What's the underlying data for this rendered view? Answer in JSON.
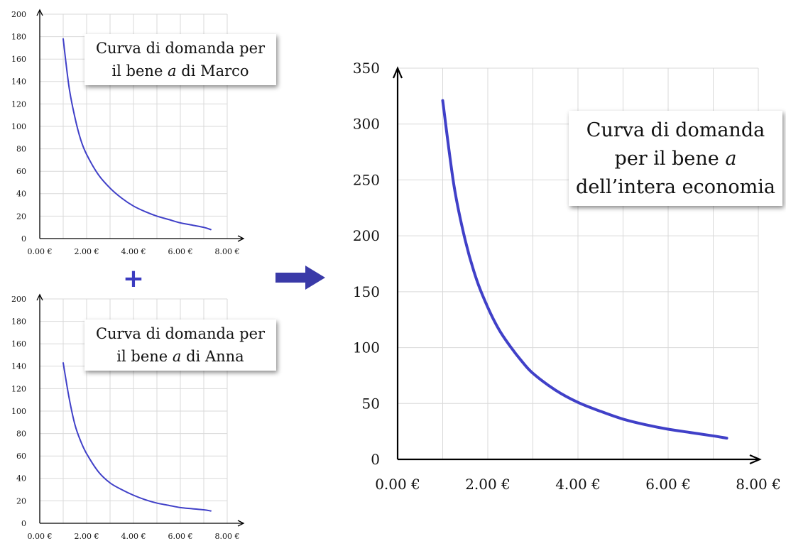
{
  "colors": {
    "curve": "#4040c8",
    "arrow": "#3a3aa8",
    "grid": "#d9d9d9",
    "axis": "#000000"
  },
  "plus_symbol": "+",
  "chart_data": [
    {
      "type": "line",
      "legend_lines": [
        "Curva di domanda per",
        "il bene ",
        "a",
        " di Marco"
      ],
      "xlim": [
        0,
        8
      ],
      "ylim": [
        0,
        200
      ],
      "x_ticks": [
        "0.00 €",
        "2.00 €",
        "4.00 €",
        "6.00 €",
        "8.00 €"
      ],
      "y_ticks": [
        "0",
        "20",
        "40",
        "60",
        "80",
        "100",
        "120",
        "140",
        "160",
        "180",
        "200"
      ],
      "grid": true,
      "legend_position": "top-right",
      "series": [
        {
          "x": [
            1.0,
            1.25,
            1.5,
            1.75,
            2.0,
            2.5,
            3.0,
            3.5,
            4.0,
            4.5,
            5.0,
            5.5,
            6.0,
            6.5,
            7.0,
            7.3
          ],
          "y": [
            178,
            135,
            108,
            88,
            75,
            57,
            45,
            36,
            29,
            24,
            20,
            17,
            14,
            12,
            10,
            8
          ]
        }
      ]
    },
    {
      "type": "line",
      "legend_lines": [
        "Curva di domanda per",
        "il bene ",
        "a",
        " di Anna"
      ],
      "xlim": [
        0,
        8
      ],
      "ylim": [
        0,
        200
      ],
      "x_ticks": [
        "0.00 €",
        "2.00 €",
        "4.00 €",
        "6.00 €",
        "8.00 €"
      ],
      "y_ticks": [
        "0",
        "20",
        "40",
        "60",
        "80",
        "100",
        "120",
        "140",
        "160",
        "180",
        "200"
      ],
      "grid": true,
      "legend_position": "top-right",
      "series": [
        {
          "x": [
            1.0,
            1.25,
            1.5,
            1.75,
            2.0,
            2.5,
            3.0,
            3.5,
            4.0,
            4.5,
            5.0,
            5.5,
            6.0,
            6.5,
            7.0,
            7.3
          ],
          "y": [
            143,
            112,
            88,
            73,
            62,
            46,
            36,
            30,
            25,
            21,
            18,
            16,
            14,
            13,
            12,
            11
          ]
        }
      ]
    },
    {
      "type": "line",
      "legend_lines": [
        "Curva di domanda",
        "per il bene ",
        "a",
        "dell’intera economia"
      ],
      "xlim": [
        0,
        8
      ],
      "ylim": [
        0,
        350
      ],
      "x_ticks": [
        "0.00 €",
        "2.00 €",
        "4.00 €",
        "6.00 €",
        "8.00 €"
      ],
      "y_ticks": [
        "0",
        "50",
        "100",
        "150",
        "200",
        "250",
        "300",
        "350"
      ],
      "grid": true,
      "legend_position": "top-right",
      "series": [
        {
          "x": [
            1.0,
            1.25,
            1.5,
            1.75,
            2.0,
            2.25,
            2.5,
            2.75,
            3.0,
            3.5,
            4.0,
            4.5,
            5.0,
            5.5,
            6.0,
            6.5,
            7.0,
            7.3
          ],
          "y": [
            321,
            245,
            196,
            161,
            136,
            116,
            101,
            88,
            77,
            62,
            51,
            43,
            36,
            31,
            27,
            24,
            21,
            19
          ]
        }
      ]
    }
  ]
}
